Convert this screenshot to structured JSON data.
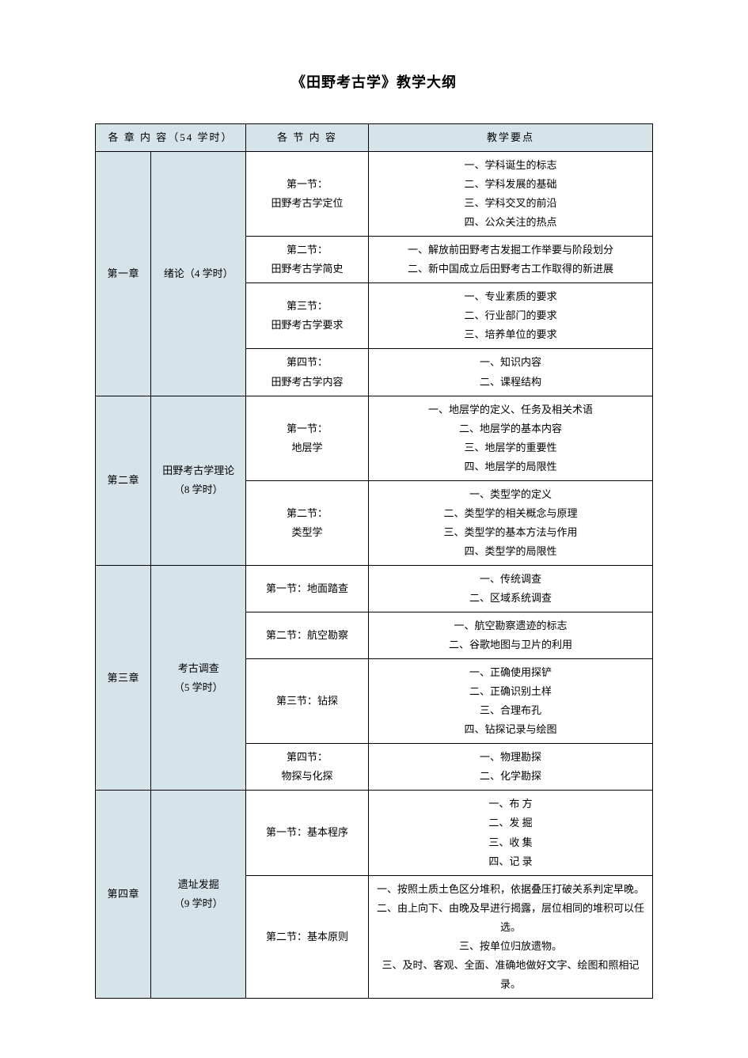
{
  "title": "《田野考古学》教学大纲",
  "colors": {
    "header_bg": "#d6e3e9",
    "chapter_bg": "#d6e3e9",
    "border": "#000000",
    "page_bg": "#ffffff",
    "text": "#000000"
  },
  "column_widths_percent": [
    10,
    17,
    22,
    51
  ],
  "headers": {
    "chapter": "各 章 内 容（54 学时）",
    "section": "各 节 内 容",
    "points": "教学要点"
  },
  "chapters": [
    {
      "label": "第一章",
      "name": "绪论（4 学时）",
      "sections": [
        {
          "title": "第一节：\n田野考古学定位",
          "points": [
            "一、学科诞生的标志",
            "二、学科发展的基础",
            "三、学科交叉的前沿",
            "四、公众关注的热点"
          ]
        },
        {
          "title": "第二节：\n田野考古学简史",
          "points": [
            "一、解放前田野考古发掘工作举要与阶段划分",
            "二、新中国成立后田野考古工作取得的新进展"
          ]
        },
        {
          "title": "第三节：\n田野考古学要求",
          "points": [
            "一、专业素质的要求",
            "二、行业部门的要求",
            "三、培养单位的要求"
          ]
        },
        {
          "title": "第四节：\n田野考古学内容",
          "points": [
            "一、知识内容",
            "二、课程结构"
          ]
        }
      ]
    },
    {
      "label": "第二章",
      "name": "田野考古学理论\n（8 学时）",
      "sections": [
        {
          "title": "第一节：\n地层学",
          "points": [
            "一、地层学的定义、任务及相关术语",
            "二、地层学的基本内容",
            "三、地层学的重要性",
            "四、地层学的局限性"
          ]
        },
        {
          "title": "第二节：\n类型学",
          "points": [
            "一、类型学的定义",
            "二、类型学的相关概念与原理",
            "三、类型学的基本方法与作用",
            "四、类型学的局限性"
          ]
        }
      ]
    },
    {
      "label": "第三章",
      "name": "考古调查\n（5 学时）",
      "sections": [
        {
          "title": "第一节：地面踏查",
          "points": [
            "一、传统调查",
            "二、区域系统调查"
          ]
        },
        {
          "title": "第二节：航空勘察",
          "points": [
            "一、航空勘察遗迹的标志",
            "二、谷歌地图与卫片的利用"
          ]
        },
        {
          "title": "第三节：钻探",
          "points": [
            "一、正确使用探铲",
            "二、正确识别土样",
            "三、合理布孔",
            "四、钻探记录与绘图"
          ]
        },
        {
          "title": "第四节：\n物探与化探",
          "points": [
            "一、物理勘探",
            "二、化学勘探"
          ]
        }
      ]
    },
    {
      "label": "第四章",
      "name": "遗址发掘\n（9 学时）",
      "sections": [
        {
          "title": "第一节：基本程序",
          "points": [
            "一、布 方",
            "二、发 掘",
            "三、收 集",
            "四、记 录"
          ]
        },
        {
          "title": "第二节：基本原则",
          "points": [
            "一、按照土质土色区分堆积，依据叠压打破关系判定早晚。",
            "二、由上向下、由晚及早进行揭露，层位相同的堆积可以任选。",
            "三、按单位归放遗物。",
            "三、及时、客观、全面、准确地做好文字、绘图和照相记录。"
          ]
        }
      ]
    }
  ]
}
